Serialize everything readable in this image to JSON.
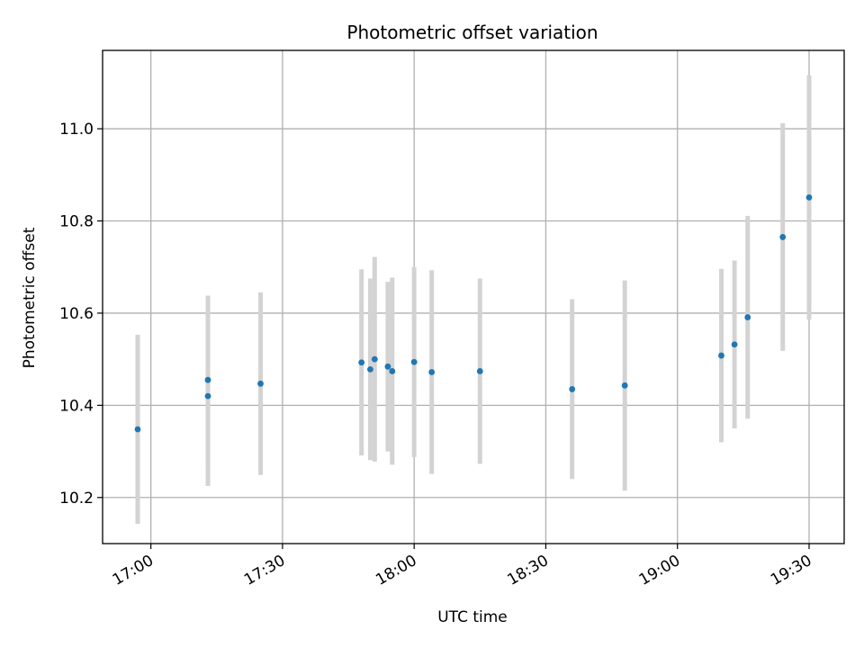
{
  "chart_data": {
    "type": "scatter",
    "title": "Photometric offset variation",
    "xlabel": "UTC time",
    "ylabel": "Photometric offset",
    "x_tick_labels": [
      "17:00",
      "17:30",
      "18:00",
      "18:30",
      "19:00",
      "19:30"
    ],
    "x_tick_times": [
      "17:00",
      "17:30",
      "18:00",
      "18:30",
      "19:00",
      "19:30"
    ],
    "y_ticks": [
      10.2,
      10.4,
      10.6,
      10.8,
      11.0
    ],
    "y_tick_labels": [
      "10.2",
      "10.4",
      "10.6",
      "10.8",
      "11.0"
    ],
    "xlim": [
      "16:49",
      "19:38"
    ],
    "ylim": [
      10.1,
      11.17
    ],
    "grid": true,
    "colors": {
      "point": "#1f77b4",
      "errorbar": "#d3d3d3",
      "grid": "#b0b0b0"
    },
    "points": [
      {
        "time": "16:57",
        "y": 10.348,
        "err": 0.205
      },
      {
        "time": "17:13",
        "y": 10.455,
        "err": 0.183
      },
      {
        "time": "17:13",
        "y": 10.42,
        "err": 0.195
      },
      {
        "time": "17:25",
        "y": 10.447,
        "err": 0.198
      },
      {
        "time": "17:48",
        "y": 10.493,
        "err": 0.202
      },
      {
        "time": "17:50",
        "y": 10.478,
        "err": 0.197
      },
      {
        "time": "17:51",
        "y": 10.5,
        "err": 0.222
      },
      {
        "time": "17:54",
        "y": 10.484,
        "err": 0.184
      },
      {
        "time": "17:55",
        "y": 10.474,
        "err": 0.203
      },
      {
        "time": "18:00",
        "y": 10.494,
        "err": 0.206
      },
      {
        "time": "18:04",
        "y": 10.472,
        "err": 0.221
      },
      {
        "time": "18:15",
        "y": 10.474,
        "err": 0.201
      },
      {
        "time": "18:36",
        "y": 10.435,
        "err": 0.195
      },
      {
        "time": "18:48",
        "y": 10.443,
        "err": 0.228
      },
      {
        "time": "19:10",
        "y": 10.508,
        "err": 0.188
      },
      {
        "time": "19:13",
        "y": 10.532,
        "err": 0.182
      },
      {
        "time": "19:16",
        "y": 10.591,
        "err": 0.22
      },
      {
        "time": "19:24",
        "y": 10.765,
        "err": 0.247
      },
      {
        "time": "19:30",
        "y": 10.851,
        "err": 0.265
      }
    ]
  }
}
